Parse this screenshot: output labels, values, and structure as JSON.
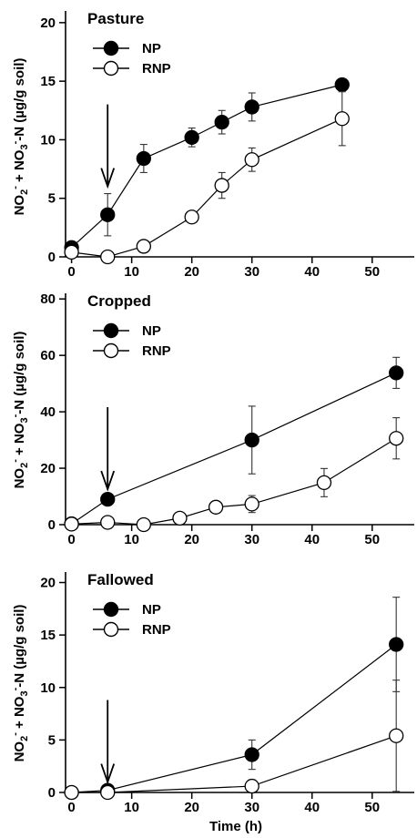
{
  "figure": {
    "ylabel_parts": [
      "NO",
      "2",
      "-",
      " + NO",
      "3",
      "-",
      "-N (µg/g soil)"
    ],
    "xlabel": "Time (h)"
  },
  "chart_data": [
    {
      "type": "line",
      "title": "Pasture",
      "xlabel": "",
      "ylabel": "NO2- + NO3--N (µg/g soil)",
      "xlim": [
        -1,
        57
      ],
      "ylim": [
        0,
        21
      ],
      "x_ticks": [
        0,
        10,
        20,
        30,
        40,
        50
      ],
      "y_ticks": [
        0,
        5,
        10,
        15,
        20
      ],
      "arrow_x": 6,
      "series": [
        {
          "name": "NP",
          "marker": "filled",
          "x": [
            0,
            6,
            12,
            20,
            25,
            30,
            45
          ],
          "y": [
            0.8,
            3.6,
            8.4,
            10.2,
            11.5,
            12.8,
            14.7
          ],
          "err": [
            0.3,
            1.8,
            1.2,
            0.8,
            1.0,
            1.2,
            0.4
          ]
        },
        {
          "name": "RNP",
          "marker": "open",
          "x": [
            0,
            6,
            12,
            20,
            25,
            30,
            45
          ],
          "y": [
            0.4,
            0.0,
            0.9,
            3.4,
            6.1,
            8.3,
            11.8
          ],
          "err": [
            0.2,
            0.2,
            0.3,
            0.4,
            1.1,
            1.0,
            2.3
          ]
        }
      ]
    },
    {
      "type": "line",
      "title": "Cropped",
      "xlabel": "",
      "ylabel": "NO2- + NO3--N (µg/g soil)",
      "xlim": [
        -1,
        57
      ],
      "ylim": [
        0,
        82
      ],
      "x_ticks": [
        0,
        10,
        20,
        30,
        40,
        50
      ],
      "y_ticks": [
        0,
        20,
        40,
        60,
        80
      ],
      "arrow_x": 6,
      "series": [
        {
          "name": "NP",
          "marker": "filled",
          "x": [
            0,
            6,
            30,
            54
          ],
          "y": [
            0.3,
            9.0,
            30.0,
            53.8
          ],
          "err": [
            0.3,
            1.0,
            12.0,
            5.5
          ]
        },
        {
          "name": "RNP",
          "marker": "open",
          "x": [
            0,
            6,
            12,
            18,
            24,
            30,
            42,
            54
          ],
          "y": [
            0.2,
            0.8,
            0.0,
            2.3,
            6.2,
            7.3,
            14.9,
            30.6
          ],
          "err": [
            0.2,
            0.3,
            0.2,
            0.5,
            0.8,
            3.0,
            5.0,
            7.3
          ]
        }
      ]
    },
    {
      "type": "line",
      "title": "Fallowed",
      "xlabel": "Time (h)",
      "ylabel": "NO2- + NO3--N (µg/g soil)",
      "xlim": [
        -1,
        57
      ],
      "ylim": [
        0,
        21
      ],
      "x_ticks": [
        0,
        10,
        20,
        30,
        40,
        50
      ],
      "y_ticks": [
        0,
        5,
        10,
        15,
        20
      ],
      "arrow_x": 6,
      "series": [
        {
          "name": "NP",
          "marker": "filled",
          "x": [
            0,
            6,
            30,
            54
          ],
          "y": [
            0.0,
            0.2,
            3.6,
            14.1
          ],
          "err": [
            0.1,
            0.1,
            1.4,
            4.5
          ]
        },
        {
          "name": "RNP",
          "marker": "open",
          "x": [
            0,
            6,
            30,
            54
          ],
          "y": [
            0.0,
            0.0,
            0.6,
            5.4
          ],
          "err": [
            0.1,
            0.1,
            0.6,
            5.3
          ]
        }
      ]
    }
  ]
}
